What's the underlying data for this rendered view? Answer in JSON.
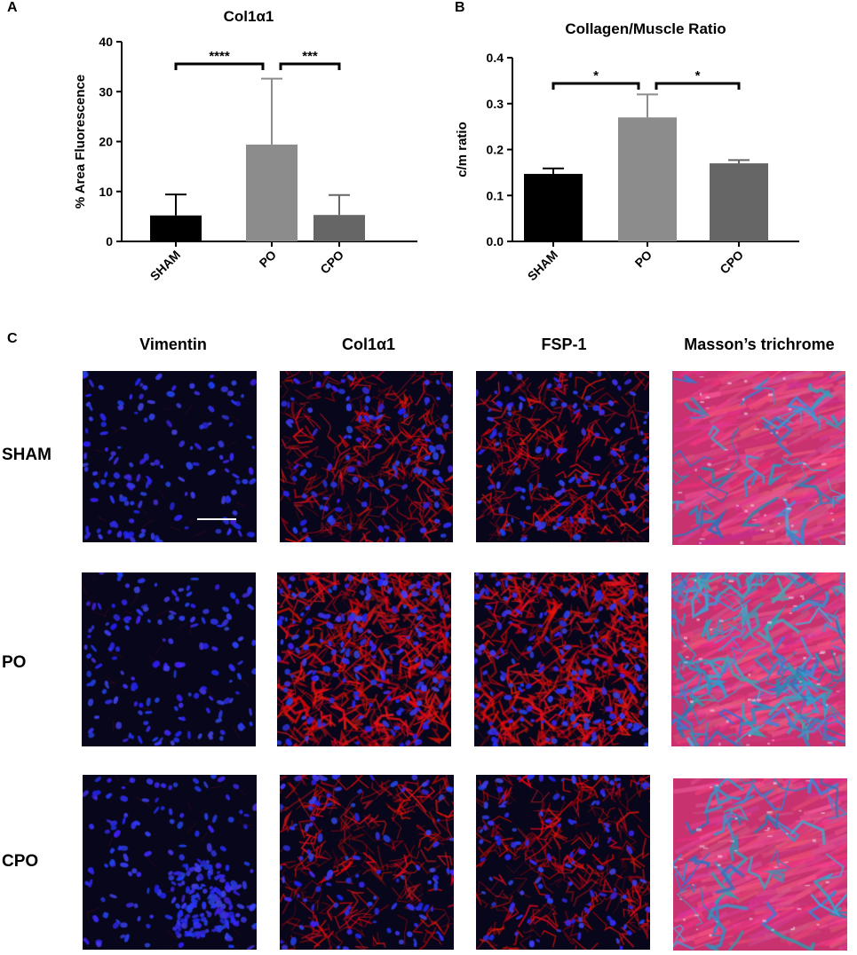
{
  "panels": {
    "a": "A",
    "b": "B",
    "c": "C"
  },
  "chart_data": [
    {
      "type": "bar",
      "title": "Col1α1",
      "ylabel": "% Area Fluorescence",
      "xlabel": "",
      "categories": [
        "SHAM",
        "PO",
        "CPO"
      ],
      "values": [
        5.2,
        19.4,
        5.3
      ],
      "errors": [
        4.2,
        13.2,
        4.0
      ],
      "ylim": [
        0,
        40
      ],
      "yticks": [
        0,
        10,
        20,
        30,
        40
      ],
      "bar_colors": [
        "#000000",
        "#8c8c8c",
        "#666666"
      ],
      "significance": [
        {
          "from": "SHAM",
          "to": "PO",
          "label": "****"
        },
        {
          "from": "PO",
          "to": "CPO",
          "label": "***"
        }
      ]
    },
    {
      "type": "bar",
      "title": "Collagen/Muscle Ratio",
      "ylabel": "c/m ratio",
      "xlabel": "",
      "categories": [
        "SHAM",
        "PO",
        "CPO"
      ],
      "values": [
        0.147,
        0.27,
        0.17
      ],
      "errors": [
        0.012,
        0.05,
        0.007
      ],
      "ylim": [
        0,
        0.4
      ],
      "yticks": [
        "0.0",
        "0.1",
        "0.2",
        "0.3",
        "0.4"
      ],
      "bar_colors": [
        "#000000",
        "#8c8c8c",
        "#666666"
      ],
      "significance": [
        {
          "from": "SHAM",
          "to": "PO",
          "label": "*"
        },
        {
          "from": "PO",
          "to": "CPO",
          "label": "*"
        }
      ]
    }
  ],
  "grid": {
    "columns": [
      "Vimentin",
      "Col1α1",
      "FSP-1",
      "Masson’s trichrome"
    ],
    "rows": [
      "SHAM",
      "PO",
      "CPO"
    ],
    "image_types": [
      "blue-nuclei",
      "red-fibers",
      "red-fibers",
      "trichrome"
    ]
  }
}
